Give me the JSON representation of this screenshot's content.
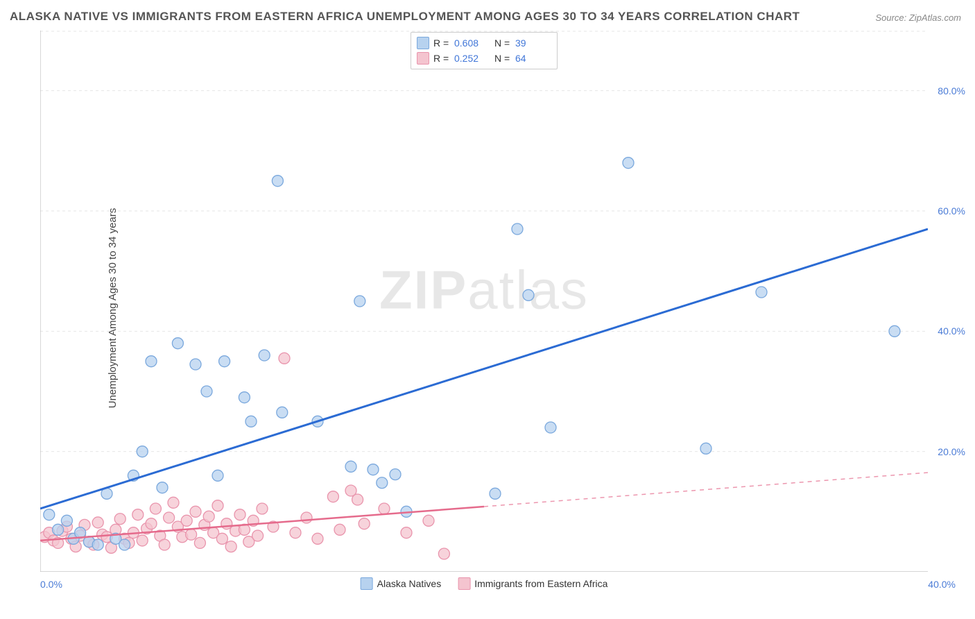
{
  "title": "ALASKA NATIVE VS IMMIGRANTS FROM EASTERN AFRICA UNEMPLOYMENT AMONG AGES 30 TO 34 YEARS CORRELATION CHART",
  "source": "Source: ZipAtlas.com",
  "ylabel": "Unemployment Among Ages 30 to 34 years",
  "watermark_a": "ZIP",
  "watermark_b": "atlas",
  "chart": {
    "type": "scatter",
    "xlim": [
      0,
      40
    ],
    "ylim": [
      0,
      90
    ],
    "yticks": [
      20,
      40,
      60,
      80
    ],
    "ytick_labels": [
      "20.0%",
      "40.0%",
      "60.0%",
      "80.0%"
    ],
    "xtick_left": "0.0%",
    "xtick_right": "40.0%",
    "grid_color": "#e6e6e6",
    "axis_color": "#bdbdbd",
    "background_color": "#ffffff",
    "series": [
      {
        "name": "Alaska Natives",
        "label": "Alaska Natives",
        "fill": "#b7d2ef",
        "stroke": "#7aa8dd",
        "trend_color": "#2b6bd3",
        "trend_width": 3,
        "marker_r": 8,
        "R": "0.608",
        "N": "39",
        "trend": {
          "x1": 0,
          "y1": 10.5,
          "x2": 40,
          "y2": 57,
          "dash_from_x": null
        },
        "points": [
          [
            0.4,
            9.5
          ],
          [
            0.8,
            7
          ],
          [
            1.2,
            8.5
          ],
          [
            1.5,
            5.5
          ],
          [
            1.8,
            6.5
          ],
          [
            2.2,
            5
          ],
          [
            2.6,
            4.5
          ],
          [
            3.0,
            13
          ],
          [
            3.4,
            5.5
          ],
          [
            3.8,
            4.5
          ],
          [
            4.2,
            16
          ],
          [
            4.6,
            20
          ],
          [
            5.0,
            35
          ],
          [
            5.5,
            14
          ],
          [
            6.2,
            38
          ],
          [
            7.0,
            34.5
          ],
          [
            7.5,
            30
          ],
          [
            8.0,
            16
          ],
          [
            8.3,
            35
          ],
          [
            9.2,
            29
          ],
          [
            9.5,
            25
          ],
          [
            10.1,
            36
          ],
          [
            10.7,
            65
          ],
          [
            10.9,
            26.5
          ],
          [
            12.5,
            25
          ],
          [
            14.0,
            17.5
          ],
          [
            14.4,
            45
          ],
          [
            15.0,
            17
          ],
          [
            15.4,
            14.8
          ],
          [
            16.0,
            16.2
          ],
          [
            16.5,
            10
          ],
          [
            20.5,
            13
          ],
          [
            21.5,
            57
          ],
          [
            22.0,
            46
          ],
          [
            23.0,
            24
          ],
          [
            26.5,
            68
          ],
          [
            30.0,
            20.5
          ],
          [
            32.5,
            46.5
          ],
          [
            38.5,
            40
          ]
        ]
      },
      {
        "name": "Immigrants from Eastern Africa",
        "label": "Immigrants from Eastern Africa",
        "fill": "#f4c4cf",
        "stroke": "#e994ac",
        "trend_color": "#e56b8c",
        "trend_width": 2.5,
        "marker_r": 8,
        "R": "0.252",
        "N": "64",
        "trend": {
          "x1": 0,
          "y1": 5.2,
          "x2": 40,
          "y2": 16.5,
          "dash_from_x": 20
        },
        "points": [
          [
            0.2,
            5.8
          ],
          [
            0.4,
            6.5
          ],
          [
            0.6,
            5.2
          ],
          [
            0.8,
            4.8
          ],
          [
            1.0,
            6.8
          ],
          [
            1.2,
            7.5
          ],
          [
            1.4,
            5.5
          ],
          [
            1.6,
            4.2
          ],
          [
            1.8,
            6.0
          ],
          [
            2.0,
            7.8
          ],
          [
            2.2,
            5.0
          ],
          [
            2.4,
            4.5
          ],
          [
            2.6,
            8.2
          ],
          [
            2.8,
            6.2
          ],
          [
            3.0,
            5.8
          ],
          [
            3.2,
            4.0
          ],
          [
            3.4,
            7.0
          ],
          [
            3.6,
            8.8
          ],
          [
            3.8,
            5.5
          ],
          [
            4.0,
            4.8
          ],
          [
            4.2,
            6.5
          ],
          [
            4.4,
            9.5
          ],
          [
            4.6,
            5.2
          ],
          [
            4.8,
            7.2
          ],
          [
            5.0,
            8.0
          ],
          [
            5.2,
            10.5
          ],
          [
            5.4,
            6.0
          ],
          [
            5.6,
            4.5
          ],
          [
            5.8,
            9.0
          ],
          [
            6.0,
            11.5
          ],
          [
            6.2,
            7.5
          ],
          [
            6.4,
            5.8
          ],
          [
            6.6,
            8.5
          ],
          [
            6.8,
            6.2
          ],
          [
            7.0,
            10.0
          ],
          [
            7.2,
            4.8
          ],
          [
            7.4,
            7.8
          ],
          [
            7.6,
            9.2
          ],
          [
            7.8,
            6.5
          ],
          [
            8.0,
            11.0
          ],
          [
            8.2,
            5.5
          ],
          [
            8.4,
            8.0
          ],
          [
            8.6,
            4.2
          ],
          [
            8.8,
            6.8
          ],
          [
            9.0,
            9.5
          ],
          [
            9.2,
            7.0
          ],
          [
            9.4,
            5.0
          ],
          [
            9.6,
            8.5
          ],
          [
            9.8,
            6.0
          ],
          [
            10.0,
            10.5
          ],
          [
            10.5,
            7.5
          ],
          [
            11.0,
            35.5
          ],
          [
            11.5,
            6.5
          ],
          [
            12.0,
            9.0
          ],
          [
            12.5,
            5.5
          ],
          [
            13.2,
            12.5
          ],
          [
            13.5,
            7.0
          ],
          [
            14.0,
            13.5
          ],
          [
            14.3,
            12.0
          ],
          [
            14.6,
            8.0
          ],
          [
            15.5,
            10.5
          ],
          [
            16.5,
            6.5
          ],
          [
            17.5,
            8.5
          ],
          [
            18.2,
            3.0
          ]
        ]
      }
    ],
    "legend_top_cols": [
      "R =",
      "N ="
    ],
    "legend_bottom_items": [
      "Alaska Natives",
      "Immigrants from Eastern Africa"
    ]
  }
}
